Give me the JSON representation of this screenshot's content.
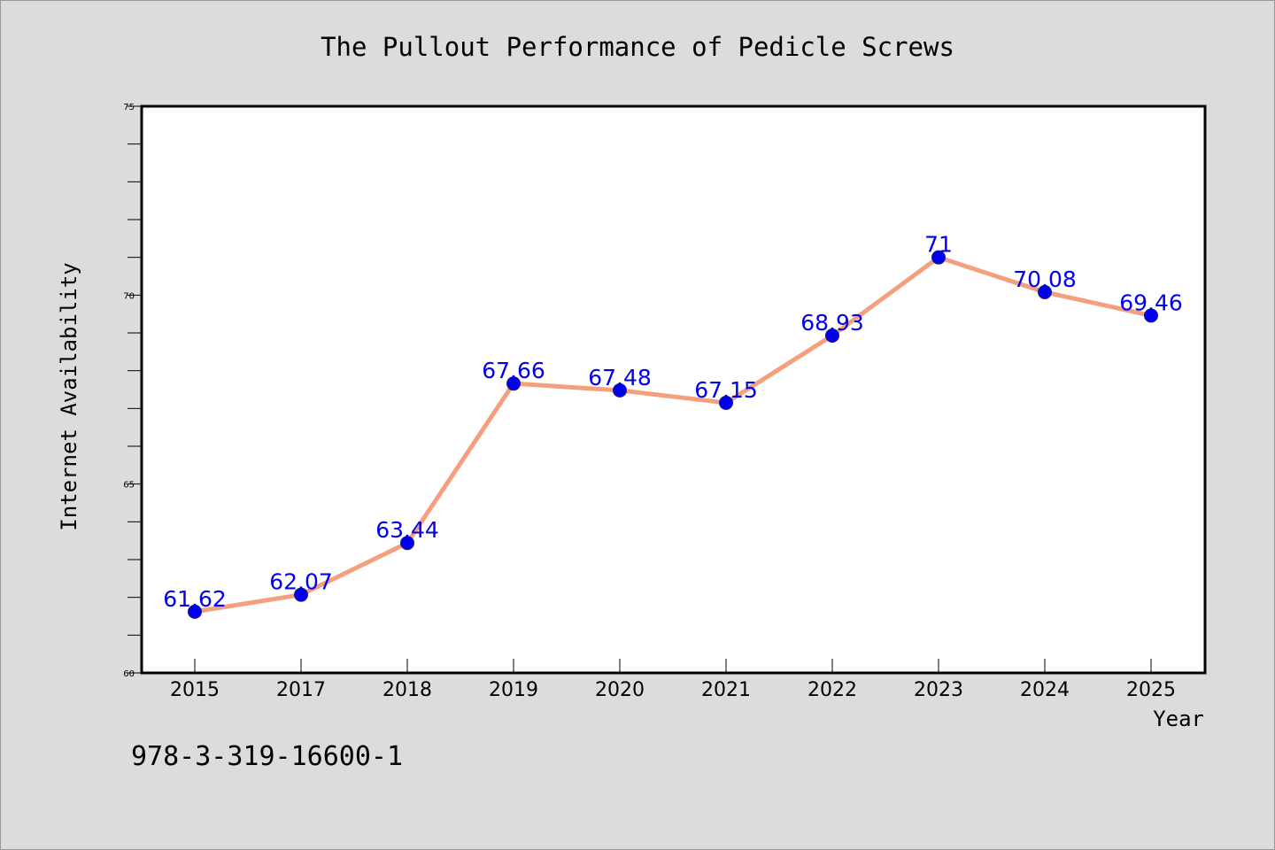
{
  "chart_data": {
    "type": "line",
    "title": "The Pullout Performance of Pedicle Screws",
    "xlabel": "Year",
    "ylabel": "Internet Availability",
    "categories": [
      "2015",
      "2017",
      "2018",
      "2019",
      "2020",
      "2021",
      "2022",
      "2023",
      "2024",
      "2025"
    ],
    "series": [
      {
        "values": [
          61.62,
          62.07,
          63.44,
          67.66,
          67.48,
          67.15,
          68.93,
          71,
          70.08,
          69.46
        ],
        "labels": [
          "61.62",
          "62.07",
          "63.44",
          "67.66",
          "67.48",
          "67.15",
          "68.93",
          "71",
          "70.08",
          "69.46"
        ]
      }
    ],
    "ylim": [
      60,
      75
    ],
    "yticks": [
      "60",
      "65",
      "70",
      "75"
    ],
    "grid": false,
    "legend": "none",
    "line_color": "#f4a07f",
    "marker_color": "#0000ee",
    "label_color": "#0000ee"
  },
  "footer": {
    "text": "978-3-319-16600-1"
  }
}
